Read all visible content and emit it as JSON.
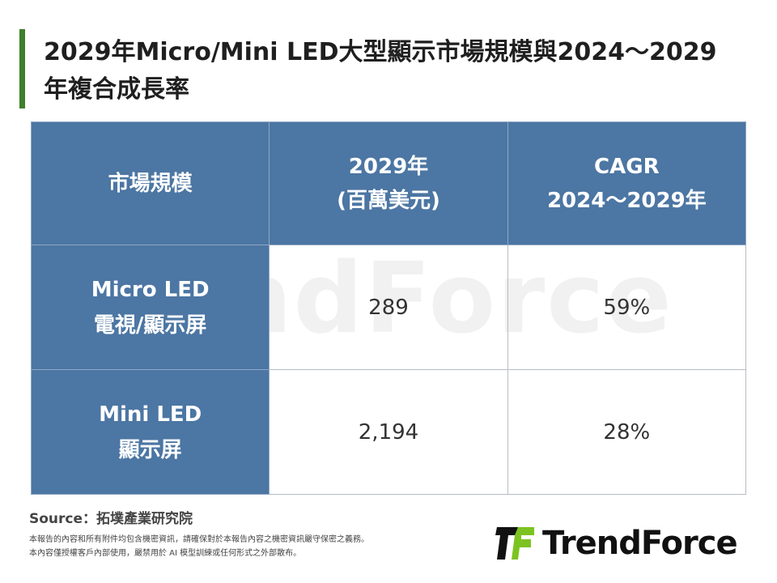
{
  "title": "2029年Micro/Mini LED大型顯示市場規模與2024～2029年複合成長率",
  "chart_data": {
    "type": "table",
    "columns": [
      "市場規模",
      "2029年\n(百萬美元)",
      "CAGR\n2024～2029年"
    ],
    "rows": [
      {
        "label": "Micro LED\n電視/顯示屏",
        "value": "289",
        "cagr": "59%"
      },
      {
        "label": "Mini LED\n顯示屏",
        "value": "2,194",
        "cagr": "28%"
      }
    ]
  },
  "header": {
    "col0": "市場規模",
    "col1_l1": "2029年",
    "col1_l2": "(百萬美元)",
    "col2_l1": "CAGR",
    "col2_l2": "2024～2029年"
  },
  "rows": [
    {
      "l1": "Micro LED",
      "l2": "電視/顯示屏",
      "value": "289",
      "cagr": "59%"
    },
    {
      "l1": "Mini LED",
      "l2": "顯示屏",
      "value": "2,194",
      "cagr": "28%"
    }
  ],
  "watermark": "TrendForce",
  "source": "Source：拓墣產業研究院",
  "notes": [
    "本報告的內容和所有附件均包含機密資訊，請確保對於本報告內容之機密資訊嚴守保密之義務。",
    "本內容僅授權客戶內部使用，嚴禁用於 AI 模型訓練或任何形式之外部散布。"
  ],
  "logo": "TrendForce",
  "colors": {
    "header": "#4c76a3",
    "accent": "#3f7f2a",
    "logo_green": "#7cc321"
  }
}
